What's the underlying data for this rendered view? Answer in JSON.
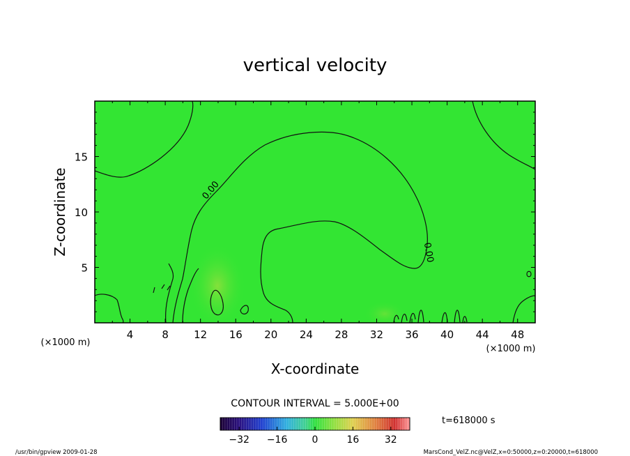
{
  "chart_data": {
    "type": "heatmap",
    "title": "vertical velocity",
    "xlabel": "X-coordinate",
    "ylabel": "Z-coordinate",
    "x_unit": "(×1000 m)",
    "y_unit": "(×1000 m)",
    "xlim": [
      0,
      50
    ],
    "ylim": [
      0,
      20
    ],
    "x_ticks": [
      4,
      8,
      12,
      16,
      20,
      24,
      28,
      32,
      36,
      40,
      44,
      48
    ],
    "y_ticks": [
      5,
      10,
      15
    ],
    "contour_labels": [
      {
        "text": "0.00",
        "x": 13.4,
        "y": 11.8
      },
      {
        "text": "0.00",
        "x": 37.6,
        "y": 6.3
      }
    ],
    "contour_interval": "CONTOUR INTERVAL = 5.000E+00",
    "time_label": "t=618000 s",
    "colorbar": {
      "min": -40,
      "max": 40,
      "ticks": [
        -32,
        -16,
        0,
        16,
        32
      ]
    },
    "colors": {
      "background_field": "#33e533",
      "warm_patch": "#7fe03a",
      "contour": "#111111"
    }
  },
  "footer": {
    "left": "/usr/bin/gpview   2009-01-28",
    "right": "MarsCond_VelZ.nc@VelZ,x=0:50000,z=0:20000,t=618000"
  }
}
